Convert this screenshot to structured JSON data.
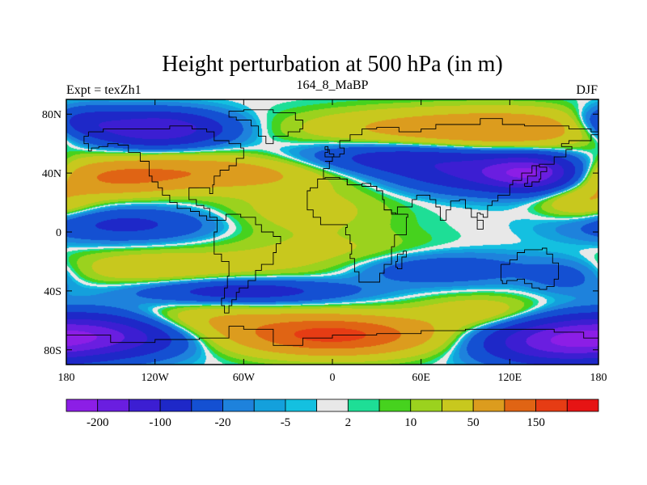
{
  "chart_data": {
    "type": "heatmap",
    "title": "Height perturbation at 500 hPa (in m)",
    "left_label": "Expt = texZh1",
    "center_label": "164_8_MaBP",
    "right_label": "DJF",
    "x_ticks": [
      {
        "value": -180,
        "label": "180"
      },
      {
        "value": -120,
        "label": "120W"
      },
      {
        "value": -60,
        "label": "60W"
      },
      {
        "value": 0,
        "label": "0"
      },
      {
        "value": 60,
        "label": "60E"
      },
      {
        "value": 120,
        "label": "120E"
      },
      {
        "value": 180,
        "label": "180"
      }
    ],
    "y_ticks": [
      {
        "value": 80,
        "label": "80N"
      },
      {
        "value": 40,
        "label": "40N"
      },
      {
        "value": 0,
        "label": "0"
      },
      {
        "value": -40,
        "label": "40S"
      },
      {
        "value": -80,
        "label": "80S"
      }
    ],
    "xlim": [
      -180,
      180
    ],
    "ylim": [
      -90,
      90
    ],
    "colorbar": {
      "boundaries": [
        -300,
        -200,
        -150,
        -100,
        -50,
        -20,
        -10,
        -5,
        -2,
        2,
        5,
        10,
        20,
        50,
        100,
        150,
        200,
        300
      ],
      "colors": [
        "#8c1ee6",
        "#6a1ee0",
        "#3c1ed2",
        "#1e28c8",
        "#1450d2",
        "#1e82dc",
        "#14a0dc",
        "#14c0e0",
        "#e8e8e8",
        "#1ede96",
        "#46d21e",
        "#9bd21e",
        "#c8c81e",
        "#dc9c1e",
        "#e06414",
        "#e63c14",
        "#e61414"
      ],
      "tick_labels": [
        {
          "value": -200,
          "label": "-200"
        },
        {
          "value": -100,
          "label": "-100"
        },
        {
          "value": -20,
          "label": "-20"
        },
        {
          "value": -5,
          "label": "-5"
        },
        {
          "value": 2,
          "label": "2"
        },
        {
          "value": 10,
          "label": "10"
        },
        {
          "value": 50,
          "label": "50"
        },
        {
          "value": 150,
          "label": "150"
        }
      ]
    },
    "features": [
      {
        "lon": -120,
        "lat": 70,
        "amp": -150,
        "sx": 32,
        "sy": 8
      },
      {
        "lon": -170,
        "lat": 75,
        "amp": -60,
        "sx": 18,
        "sy": 7
      },
      {
        "lon": -95,
        "lat": 40,
        "amp": 90,
        "sx": 60,
        "sy": 8
      },
      {
        "lon": -150,
        "lat": 35,
        "amp": 60,
        "sx": 30,
        "sy": 8
      },
      {
        "lon": 70,
        "lat": 70,
        "amp": 70,
        "sx": 60,
        "sy": 9
      },
      {
        "lon": 130,
        "lat": 70,
        "amp": 50,
        "sx": 40,
        "sy": 9
      },
      {
        "lon": 40,
        "lat": 50,
        "amp": -70,
        "sx": 45,
        "sy": 8
      },
      {
        "lon": 135,
        "lat": 40,
        "amp": -160,
        "sx": 22,
        "sy": 8
      },
      {
        "lon": 100,
        "lat": 40,
        "amp": -90,
        "sx": 38,
        "sy": 9
      },
      {
        "lon": 170,
        "lat": 20,
        "amp": 50,
        "sx": 20,
        "sy": 8
      },
      {
        "lon": -140,
        "lat": 5,
        "amp": -60,
        "sx": 40,
        "sy": 8
      },
      {
        "lon": -20,
        "lat": 15,
        "amp": 30,
        "sx": 40,
        "sy": 12
      },
      {
        "lon": 0,
        "lat": -20,
        "amp": 35,
        "sx": 50,
        "sy": 12
      },
      {
        "lon": -120,
        "lat": -25,
        "amp": 40,
        "sx": 45,
        "sy": 9
      },
      {
        "lon": 60,
        "lat": -25,
        "amp": -50,
        "sx": 50,
        "sy": 8
      },
      {
        "lon": -60,
        "lat": -40,
        "amp": -80,
        "sx": 50,
        "sy": 6
      },
      {
        "lon": 160,
        "lat": -30,
        "amp": -30,
        "sx": 20,
        "sy": 8
      },
      {
        "lon": 0,
        "lat": -70,
        "amp": 170,
        "sx": 45,
        "sy": 9
      },
      {
        "lon": -160,
        "lat": -70,
        "amp": -160,
        "sx": 40,
        "sy": 10
      },
      {
        "lon": 150,
        "lat": -75,
        "amp": -140,
        "sx": 35,
        "sy": 10
      },
      {
        "lon": 100,
        "lat": -55,
        "amp": 40,
        "sx": 30,
        "sy": 8
      },
      {
        "lon": -90,
        "lat": -60,
        "amp": 50,
        "sx": 40,
        "sy": 8
      }
    ],
    "coastlines": [
      [
        [
          -165,
          68
        ],
        [
          -155,
          70
        ],
        [
          -140,
          70
        ],
        [
          -125,
          70
        ],
        [
          -110,
          72
        ],
        [
          -95,
          70
        ],
        [
          -85,
          68
        ],
        [
          -80,
          62
        ],
        [
          -75,
          62
        ],
        [
          -70,
          60
        ],
        [
          -62,
          57
        ],
        [
          -60,
          50
        ],
        [
          -65,
          45
        ],
        [
          -70,
          42
        ],
        [
          -76,
          38
        ],
        [
          -80,
          32
        ],
        [
          -81,
          26
        ],
        [
          -83,
          30
        ],
        [
          -90,
          30
        ],
        [
          -97,
          27
        ],
        [
          -97,
          22
        ],
        [
          -92,
          18
        ],
        [
          -87,
          16
        ],
        [
          -83,
          10
        ],
        [
          -78,
          8
        ],
        [
          -80,
          8
        ],
        [
          -85,
          11
        ],
        [
          -90,
          14
        ],
        [
          -96,
          16
        ],
        [
          -105,
          20
        ],
        [
          -110,
          25
        ],
        [
          -115,
          30
        ],
        [
          -118,
          34
        ],
        [
          -122,
          38
        ],
        [
          -124,
          43
        ],
        [
          -124,
          48
        ],
        [
          -130,
          54
        ],
        [
          -138,
          59
        ],
        [
          -145,
          60
        ],
        [
          -152,
          58
        ],
        [
          -158,
          57
        ],
        [
          -163,
          55
        ],
        [
          -165,
          60
        ],
        [
          -168,
          65
        ],
        [
          -165,
          68
        ]
      ],
      [
        [
          -78,
          8
        ],
        [
          -72,
          12
        ],
        [
          -62,
          10
        ],
        [
          -52,
          5
        ],
        [
          -48,
          0
        ],
        [
          -40,
          -3
        ],
        [
          -35,
          -8
        ],
        [
          -38,
          -14
        ],
        [
          -40,
          -22
        ],
        [
          -48,
          -26
        ],
        [
          -52,
          -33
        ],
        [
          -57,
          -38
        ],
        [
          -63,
          -41
        ],
        [
          -65,
          -46
        ],
        [
          -68,
          -50
        ],
        [
          -70,
          -55
        ],
        [
          -73,
          -50
        ],
        [
          -75,
          -45
        ],
        [
          -73,
          -38
        ],
        [
          -71,
          -30
        ],
        [
          -70,
          -20
        ],
        [
          -75,
          -15
        ],
        [
          -80,
          -7
        ],
        [
          -80,
          0
        ],
        [
          -78,
          8
        ]
      ],
      [
        [
          -10,
          36
        ],
        [
          -6,
          43
        ],
        [
          -2,
          48
        ],
        [
          -5,
          48
        ],
        [
          0,
          51
        ],
        [
          5,
          53
        ],
        [
          8,
          57
        ],
        [
          5,
          62
        ],
        [
          12,
          66
        ],
        [
          20,
          70
        ],
        [
          30,
          71
        ],
        [
          45,
          68
        ],
        [
          60,
          70
        ],
        [
          70,
          73
        ],
        [
          80,
          73
        ],
        [
          100,
          77
        ],
        [
          115,
          73
        ],
        [
          130,
          72
        ],
        [
          145,
          72
        ],
        [
          160,
          70
        ],
        [
          175,
          68
        ],
        [
          180,
          66
        ],
        [
          175,
          62
        ],
        [
          160,
          60
        ],
        [
          155,
          58
        ],
        [
          162,
          56
        ],
        [
          158,
          51
        ],
        [
          150,
          46
        ],
        [
          140,
          45
        ],
        [
          135,
          40
        ],
        [
          128,
          35
        ],
        [
          122,
          32
        ],
        [
          120,
          25
        ],
        [
          112,
          21
        ],
        [
          108,
          18
        ],
        [
          105,
          10
        ],
        [
          102,
          12
        ],
        [
          100,
          13
        ],
        [
          98,
          8
        ],
        [
          102,
          2
        ],
        [
          98,
          10
        ],
        [
          94,
          16
        ],
        [
          90,
          22
        ],
        [
          86,
          21
        ],
        [
          80,
          15
        ],
        [
          77,
          8
        ],
        [
          73,
          17
        ],
        [
          70,
          22
        ],
        [
          66,
          25
        ],
        [
          58,
          25
        ],
        [
          57,
          22
        ],
        [
          54,
          17
        ],
        [
          44,
          12
        ],
        [
          50,
          12
        ],
        [
          43,
          13
        ],
        [
          40,
          15
        ],
        [
          35,
          22
        ],
        [
          34,
          28
        ],
        [
          30,
          31
        ],
        [
          26,
          33
        ],
        [
          20,
          32
        ],
        [
          15,
          32
        ],
        [
          10,
          36
        ],
        [
          5,
          37
        ],
        [
          -5,
          36
        ],
        [
          -10,
          36
        ]
      ],
      [
        [
          -17,
          21
        ],
        [
          -17,
          15
        ],
        [
          -13,
          10
        ],
        [
          -8,
          5
        ],
        [
          0,
          5
        ],
        [
          8,
          5
        ],
        [
          10,
          3
        ],
        [
          9,
          -2
        ],
        [
          12,
          -8
        ],
        [
          13,
          -15
        ],
        [
          12,
          -18
        ],
        [
          15,
          -27
        ],
        [
          18,
          -34
        ],
        [
          25,
          -34
        ],
        [
          32,
          -28
        ],
        [
          35,
          -22
        ],
        [
          40,
          -15
        ],
        [
          40,
          -10
        ],
        [
          42,
          -2
        ],
        [
          50,
          10
        ],
        [
          51,
          12
        ],
        [
          44,
          12
        ],
        [
          40,
          15
        ],
        [
          35,
          22
        ],
        [
          34,
          28
        ],
        [
          30,
          31
        ],
        [
          20,
          32
        ],
        [
          10,
          36
        ],
        [
          0,
          36
        ],
        [
          -5,
          36
        ],
        [
          -10,
          30
        ],
        [
          -15,
          28
        ],
        [
          -17,
          21
        ]
      ],
      [
        [
          114,
          -22
        ],
        [
          120,
          -19
        ],
        [
          125,
          -14
        ],
        [
          130,
          -12
        ],
        [
          137,
          -12
        ],
        [
          142,
          -11
        ],
        [
          145,
          -15
        ],
        [
          149,
          -21
        ],
        [
          153,
          -27
        ],
        [
          153,
          -32
        ],
        [
          150,
          -37
        ],
        [
          145,
          -39
        ],
        [
          140,
          -38
        ],
        [
          135,
          -35
        ],
        [
          130,
          -32
        ],
        [
          125,
          -33
        ],
        [
          118,
          -35
        ],
        [
          115,
          -33
        ],
        [
          114,
          -26
        ],
        [
          114,
          -22
        ]
      ],
      [
        [
          -45,
          60
        ],
        [
          -40,
          65
        ],
        [
          -30,
          68
        ],
        [
          -22,
          70
        ],
        [
          -20,
          76
        ],
        [
          -25,
          81
        ],
        [
          -40,
          83
        ],
        [
          -60,
          82
        ],
        [
          -70,
          78
        ],
        [
          -65,
          76
        ],
        [
          -55,
          72
        ],
        [
          -50,
          65
        ],
        [
          -45,
          60
        ]
      ],
      [
        [
          -5,
          58
        ],
        [
          -3,
          54
        ],
        [
          -5,
          51
        ],
        [
          0,
          51
        ],
        [
          1,
          53
        ],
        [
          -2,
          56
        ],
        [
          -5,
          58
        ]
      ],
      [
        [
          130,
          31
        ],
        [
          135,
          34
        ],
        [
          140,
          36
        ],
        [
          141,
          41
        ],
        [
          145,
          44
        ],
        [
          140,
          45
        ],
        [
          138,
          38
        ],
        [
          132,
          33
        ],
        [
          130,
          31
        ]
      ],
      [
        [
          -180,
          -70
        ],
        [
          -150,
          -75
        ],
        [
          -120,
          -73
        ],
        [
          -90,
          -72
        ],
        [
          -70,
          -64
        ],
        [
          -60,
          -66
        ],
        [
          -40,
          -77
        ],
        [
          -20,
          -72
        ],
        [
          0,
          -70
        ],
        [
          30,
          -69
        ],
        [
          60,
          -67
        ],
        [
          90,
          -66
        ],
        [
          120,
          -66
        ],
        [
          150,
          -68
        ],
        [
          170,
          -72
        ],
        [
          180,
          -70
        ]
      ],
      [
        [
          44,
          -15
        ],
        [
          48,
          -13
        ],
        [
          50,
          -17
        ],
        [
          47,
          -25
        ],
        [
          44,
          -24
        ],
        [
          43,
          -20
        ],
        [
          44,
          -15
        ]
      ]
    ]
  }
}
